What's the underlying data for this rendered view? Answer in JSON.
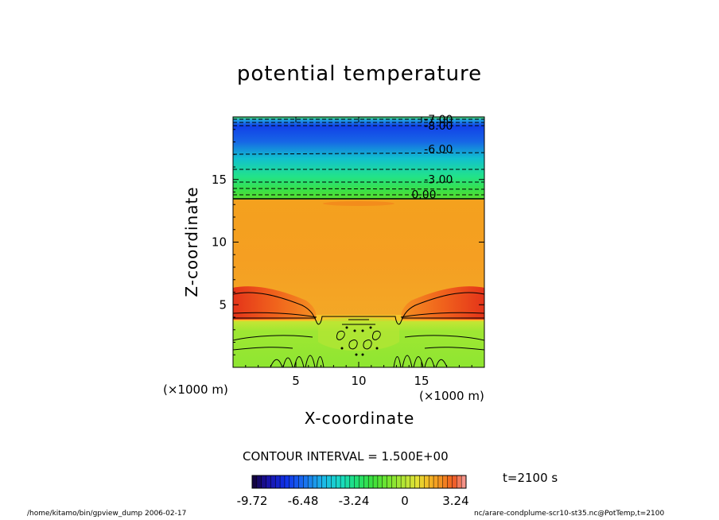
{
  "chart_data": {
    "type": "heatmap",
    "title": "potential temperature",
    "xlabel": "X-coordinate",
    "ylabel": "Z-coordinate",
    "x_unit": "(×1000 m)",
    "y_unit": "(×1000 m)",
    "xlim": [
      0,
      20
    ],
    "ylim": [
      0,
      20
    ],
    "x_ticks": [
      5,
      10,
      15
    ],
    "y_ticks": [
      5,
      10,
      15
    ],
    "contour_interval": "CONTOUR INTERVAL = 1.500E+00",
    "contour_labels": [
      {
        "text": "-7.00",
        "x": 15.2,
        "z": 19.5
      },
      {
        "text": "-8.00",
        "x": 15.2,
        "z": 19.0
      },
      {
        "text": "-6.00",
        "x": 15.2,
        "z": 17.1
      },
      {
        "text": "-3.00",
        "x": 15.2,
        "z": 14.7
      },
      {
        "text": "0.00",
        "x": 14.2,
        "z": 13.5
      }
    ],
    "time": "t=2100 s",
    "colorbar": {
      "min": -9.72,
      "max": 3.9,
      "tick_labels": [
        "-9.72",
        "-6.48",
        "-3.24",
        "0",
        "3.24"
      ],
      "tick_values": [
        -9.72,
        -6.48,
        -3.24,
        0,
        3.24
      ]
    }
  },
  "footer": {
    "left": "/home/kitamo/bin/gpview_dump  2006-02-17",
    "right": "nc/arare-condplume-scr10-st35.nc@PotTemp,t=2100"
  }
}
